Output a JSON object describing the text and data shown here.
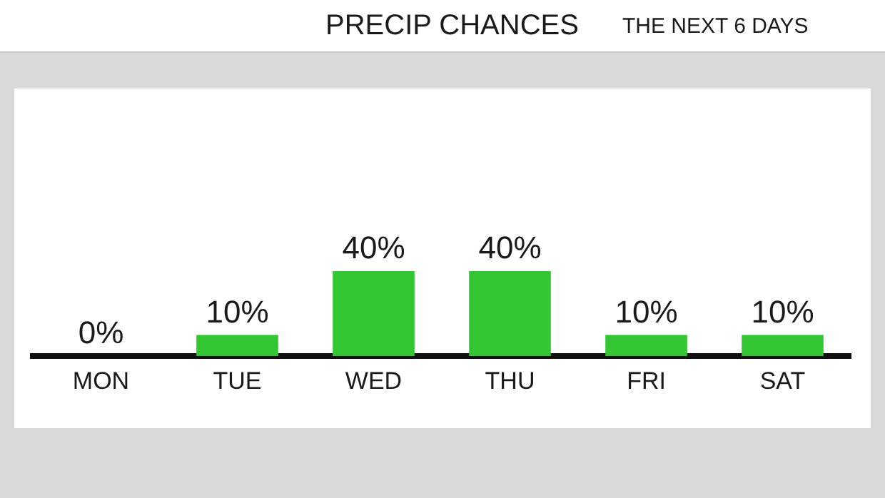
{
  "chart_data": {
    "type": "bar",
    "title": "PRECIP CHANCES",
    "subtitle": "THE NEXT 6 DAYS",
    "categories": [
      "MON",
      "TUE",
      "WED",
      "THU",
      "FRI",
      "SAT"
    ],
    "values": [
      0,
      10,
      40,
      40,
      10,
      10
    ],
    "value_labels": [
      "0%",
      "10%",
      "40%",
      "40%",
      "10%",
      "10%"
    ],
    "color": "#33c633",
    "grid": false,
    "legend": false
  }
}
